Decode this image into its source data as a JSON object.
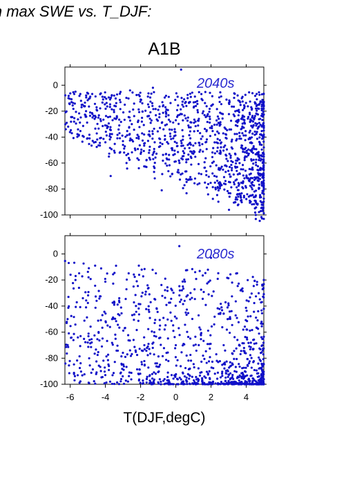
{
  "figure": {
    "title": "in max SWE vs. T_DJF:",
    "scenario": "A1B",
    "xlabel": "T(DJF,degC)"
  },
  "colors": {
    "points": "#1010c8",
    "panel_label": "#2a2ad0",
    "axes": "#000000"
  },
  "chart_data": [
    {
      "type": "scatter",
      "panel_label": "2040s",
      "xlim": [
        -6.3,
        5.0
      ],
      "ylim": [
        -100,
        14
      ],
      "yticks": [
        0,
        -20,
        -40,
        -60,
        -80,
        -100
      ],
      "ytick_labels": [
        "0",
        "-20",
        "-40",
        "-60",
        "-80",
        "-100"
      ],
      "xticks": [
        -6,
        -4,
        -2,
        0,
        2,
        4
      ],
      "xtick_labels": [],
      "grid": false,
      "description_of_spread": "approx. 1200 points; sparse at cold temperatures, dense for T between 0 and 5 degC; values concentrated between -20 and -100 at warm temperatures",
      "points": [
        [
          -6.2,
          -29
        ],
        [
          -6.1,
          -10
        ],
        [
          -5.7,
          -5
        ],
        [
          -5.3,
          -15
        ],
        [
          -5.1,
          -20
        ],
        [
          -4.9,
          -41
        ],
        [
          -4.5,
          -17
        ],
        [
          -4.4,
          -25
        ],
        [
          -4.0,
          -44
        ],
        [
          -3.9,
          -33
        ],
        [
          -3.8,
          -55
        ],
        [
          -3.7,
          -70
        ],
        [
          -3.5,
          -8
        ],
        [
          -3.4,
          -26
        ],
        [
          -3.2,
          -37
        ],
        [
          -3.0,
          -46
        ],
        [
          -2.9,
          -15
        ],
        [
          -2.8,
          -60
        ],
        [
          -2.6,
          -4
        ],
        [
          -2.5,
          -30
        ],
        [
          -2.3,
          -50
        ],
        [
          -2.1,
          -64
        ],
        [
          -2.0,
          -11
        ],
        [
          -1.8,
          -38
        ],
        [
          -1.6,
          -24
        ],
        [
          -1.5,
          -56
        ],
        [
          -1.3,
          -2
        ],
        [
          -1.2,
          -44
        ],
        [
          -1.0,
          -19
        ],
        [
          -0.8,
          -81
        ],
        [
          -0.7,
          -34
        ],
        [
          -0.5,
          -62
        ],
        [
          -0.4,
          -9
        ],
        [
          -0.2,
          -50
        ],
        [
          0.0,
          -27
        ],
        [
          0.1,
          -67
        ],
        [
          0.3,
          12
        ],
        [
          0.4,
          -42
        ],
        [
          0.6,
          -16
        ],
        [
          0.7,
          -73
        ]
      ]
    },
    {
      "type": "scatter",
      "panel_label": "2080s",
      "xlim": [
        -6.3,
        5.0
      ],
      "ylim": [
        -100,
        14
      ],
      "yticks": [
        0,
        -20,
        -40,
        -60,
        -80,
        -100
      ],
      "ytick_labels": [
        "0",
        "-20",
        "-40",
        "-60",
        "-80",
        "-100"
      ],
      "xticks": [
        -6,
        -4,
        -2,
        0,
        2,
        4
      ],
      "xtick_labels": [
        "-6",
        "-4",
        "-2",
        "0",
        "2",
        "4"
      ],
      "grid": false,
      "description_of_spread": "approx. 1000 points; sparse at cold temperatures, very dense near -80 to -100 for T between 2 and 5 degC",
      "points": [
        [
          -6.2,
          -53
        ],
        [
          -6.1,
          -33
        ],
        [
          -5.7,
          -20
        ],
        [
          -5.5,
          -26
        ],
        [
          -5.1,
          -41
        ],
        [
          -4.9,
          -66
        ],
        [
          -4.5,
          -36
        ],
        [
          -4.2,
          -71
        ],
        [
          -3.9,
          -15
        ],
        [
          -3.8,
          -86
        ],
        [
          -3.5,
          -39
        ],
        [
          -3.2,
          -47
        ],
        [
          -2.9,
          -57
        ],
        [
          -2.6,
          -74
        ],
        [
          -2.4,
          -25
        ],
        [
          -2.1,
          -9
        ],
        [
          -1.8,
          -64
        ],
        [
          -1.5,
          -31
        ],
        [
          -1.2,
          -53
        ],
        [
          -0.9,
          -85
        ],
        [
          -0.6,
          -19
        ],
        [
          -0.3,
          -45
        ],
        [
          0.0,
          -70
        ],
        [
          0.2,
          6
        ],
        [
          0.5,
          -36
        ],
        [
          0.8,
          -88
        ],
        [
          1.1,
          -14
        ],
        [
          1.4,
          -58
        ],
        [
          1.7,
          -95
        ],
        [
          2.0,
          -3
        ],
        [
          2.3,
          -77
        ],
        [
          2.6,
          -41
        ],
        [
          2.9,
          -99
        ],
        [
          3.2,
          -22
        ],
        [
          3.5,
          -66
        ],
        [
          3.8,
          -92
        ],
        [
          4.1,
          -48
        ],
        [
          4.4,
          -83
        ],
        [
          4.7,
          -97
        ],
        [
          5.0,
          -20
        ]
      ]
    }
  ]
}
